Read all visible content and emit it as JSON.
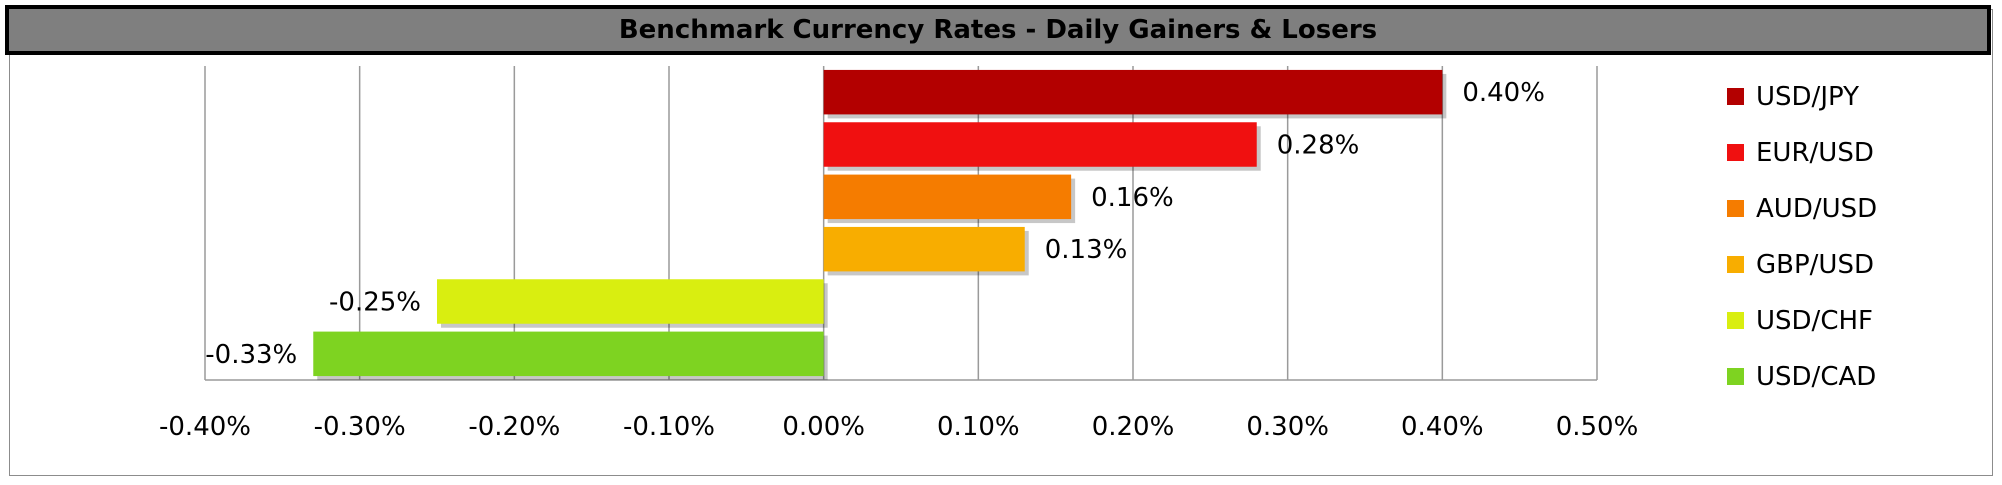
{
  "chart_data": {
    "type": "bar",
    "orientation": "horizontal",
    "title": "Benchmark Currency Rates - Daily Gainers & Losers",
    "xlim": [
      -0.4,
      0.5
    ],
    "xticks": [
      "-0.40%",
      "-0.30%",
      "-0.20%",
      "-0.10%",
      "0.00%",
      "0.10%",
      "0.20%",
      "0.30%",
      "0.40%",
      "0.50%"
    ],
    "xtick_values": [
      -0.4,
      -0.3,
      -0.2,
      -0.1,
      0.0,
      0.1,
      0.2,
      0.3,
      0.4,
      0.5
    ],
    "grid": "vertical",
    "legend_position": "right",
    "series": [
      {
        "name": "USD/JPY",
        "value": 0.4,
        "label": "0.40%",
        "color": "#b30000"
      },
      {
        "name": "EUR/USD",
        "value": 0.28,
        "label": "0.28%",
        "color": "#f01010"
      },
      {
        "name": "AUD/USD",
        "value": 0.16,
        "label": "0.16%",
        "color": "#f57c00"
      },
      {
        "name": "GBP/USD",
        "value": 0.13,
        "label": "0.13%",
        "color": "#f8ad00"
      },
      {
        "name": "USD/CHF",
        "value": -0.25,
        "label": "-0.25%",
        "color": "#d9ee10"
      },
      {
        "name": "USD/CAD",
        "value": -0.33,
        "label": "-0.33%",
        "color": "#7ed321"
      }
    ]
  }
}
